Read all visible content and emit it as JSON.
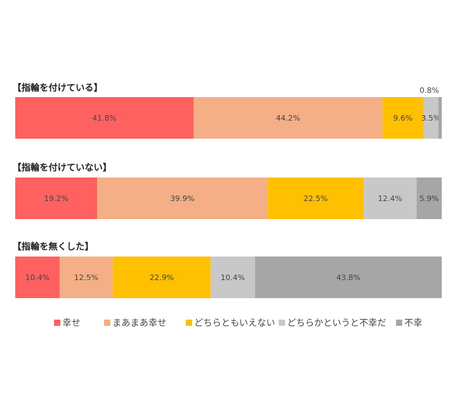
{
  "chart_data": {
    "type": "stacked-bar-horizontal-100",
    "legend_position": "bottom",
    "series": [
      {
        "name": "幸せ",
        "color": "#FF6060"
      },
      {
        "name": "まあまあ幸せ",
        "color": "#F4AF86"
      },
      {
        "name": "どちらともいえない",
        "color": "#FFC000"
      },
      {
        "name": "どちらかというと不幸だ",
        "color": "#C8C8C8"
      },
      {
        "name": "不幸",
        "color": "#A6A6A6"
      }
    ],
    "groups": [
      {
        "label": "【指輪を付けている】",
        "values": [
          41.8,
          44.2,
          9.6,
          3.5,
          0.8
        ],
        "value_labels": [
          "41.8%",
          "44.2%",
          "9.6%",
          "3.5%",
          "0.8%"
        ]
      },
      {
        "label": "【指輪を付けていない】",
        "values": [
          19.2,
          39.9,
          22.5,
          12.4,
          5.9
        ],
        "value_labels": [
          "19.2%",
          "39.9%",
          "22.5%",
          "12.4%",
          "5.9%"
        ]
      },
      {
        "label": "【指輪を無くした】",
        "values": [
          10.4,
          12.5,
          22.9,
          10.4,
          43.8
        ],
        "value_labels": [
          "10.4%",
          "12.5%",
          "22.9%",
          "10.4%",
          "43.8%"
        ]
      }
    ],
    "xlim": [
      0,
      100
    ]
  }
}
